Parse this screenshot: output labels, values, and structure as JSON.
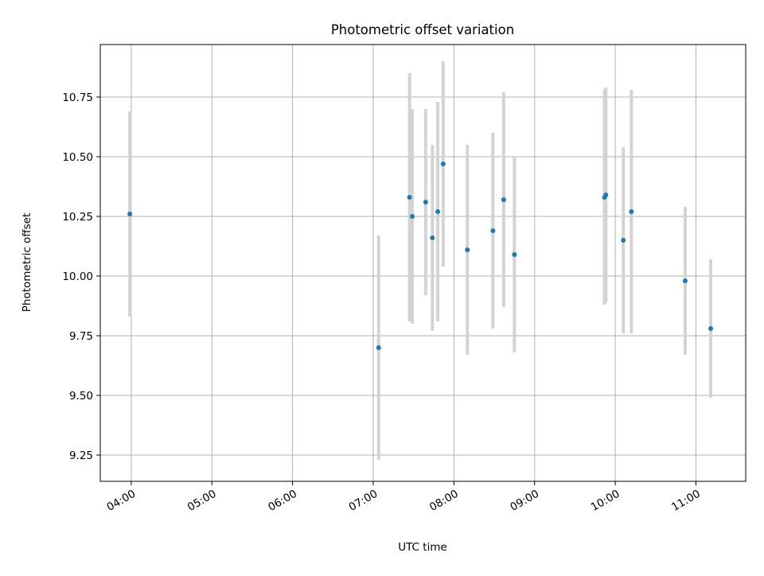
{
  "chart_data": {
    "type": "scatter",
    "title": "Photometric offset variation",
    "xlabel": "UTC time",
    "ylabel": "Photometric offset",
    "x_axis_type": "time",
    "xlim": [
      "03:37",
      "11:37"
    ],
    "ylim": [
      9.14,
      10.97
    ],
    "x_ticks": [
      "04:00",
      "05:00",
      "06:00",
      "07:00",
      "08:00",
      "09:00",
      "10:00",
      "11:00"
    ],
    "y_ticks": [
      9.25,
      9.5,
      9.75,
      10.0,
      10.25,
      10.5,
      10.75
    ],
    "y_tick_labels": [
      "9.25",
      "9.50",
      "9.75",
      "10.00",
      "10.25",
      "10.50",
      "10.75"
    ],
    "grid": true,
    "legend": "none",
    "colors": {
      "points": "#1f77b4",
      "error_bars": "#d3d3d3",
      "grid": "#b0b0b0"
    },
    "series": [
      {
        "error_bars": true,
        "points": [
          {
            "x": "03:59",
            "y": 10.26,
            "yerr": 0.43
          },
          {
            "x": "07:04",
            "y": 9.7,
            "yerr": 0.47
          },
          {
            "x": "07:27",
            "y": 10.33,
            "yerr": 0.52
          },
          {
            "x": "07:29",
            "y": 10.25,
            "yerr": 0.45
          },
          {
            "x": "07:39",
            "y": 10.31,
            "yerr": 0.39
          },
          {
            "x": "07:44",
            "y": 10.16,
            "yerr": 0.39
          },
          {
            "x": "07:48",
            "y": 10.27,
            "yerr": 0.46
          },
          {
            "x": "07:52",
            "y": 10.47,
            "yerr": 0.43
          },
          {
            "x": "08:10",
            "y": 10.11,
            "yerr": 0.44
          },
          {
            "x": "08:29",
            "y": 10.19,
            "yerr": 0.41
          },
          {
            "x": "08:37",
            "y": 10.32,
            "yerr": 0.45
          },
          {
            "x": "08:45",
            "y": 10.09,
            "yerr": 0.41
          },
          {
            "x": "09:52",
            "y": 10.33,
            "yerr": 0.45
          },
          {
            "x": "09:53",
            "y": 10.34,
            "yerr": 0.45
          },
          {
            "x": "10:06",
            "y": 10.15,
            "yerr": 0.39
          },
          {
            "x": "10:12",
            "y": 10.27,
            "yerr": 0.51
          },
          {
            "x": "10:52",
            "y": 9.98,
            "yerr": 0.31
          },
          {
            "x": "11:11",
            "y": 9.78,
            "yerr": 0.29
          }
        ]
      }
    ]
  }
}
